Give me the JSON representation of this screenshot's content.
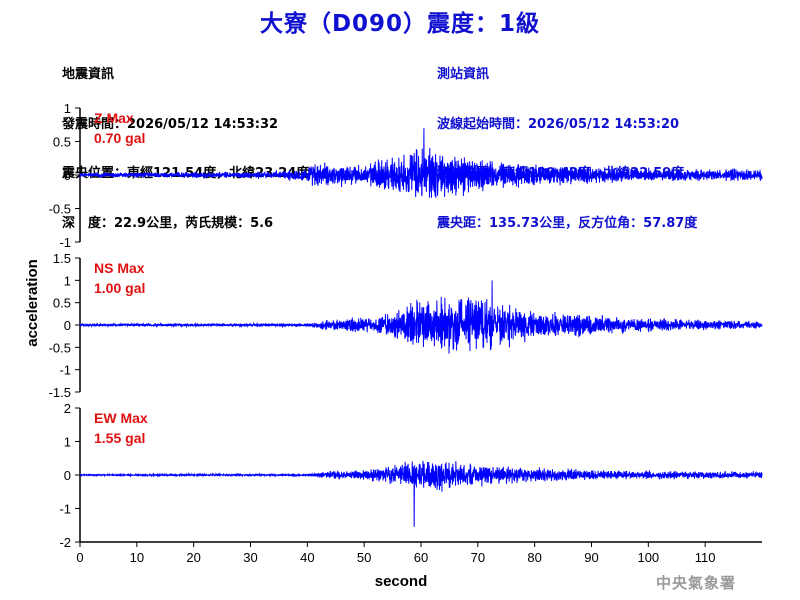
{
  "title": "大寮（D090）震度：1級",
  "info_left": {
    "heading": "地震資訊",
    "origin_time": "發震時間：2026/05/12 14:53:32",
    "epicenter": "震央位置：東經121.54度，北緯23.24度",
    "depth_magnitude": "深　度：22.9公里，芮氏規模：5.6"
  },
  "info_right": {
    "heading": "測站資訊",
    "wave_start": "波線起始時間：2026/05/12 14:53:20",
    "station_location": "測站位置：東經120.42度，北緯22.59度",
    "distance_azimuth": "震央距：135.73公里，反方位角：57.87度"
  },
  "watermark": "中央氣象署",
  "colors": {
    "title": "#1010d0",
    "trace": "#0000ff",
    "max_label": "#e01010",
    "info_right": "#1010d0"
  },
  "chart_data": {
    "type": "line",
    "xlabel": "second",
    "ylabel": "acceleration",
    "xlim": [
      0,
      120
    ],
    "xticks": [
      0,
      10,
      20,
      30,
      40,
      50,
      60,
      70,
      80,
      90,
      100,
      110
    ],
    "panels": [
      {
        "component": "Z",
        "max_label": "Z Max",
        "max_value": "0.70 gal",
        "ylim": [
          -1,
          1
        ],
        "yticks": [
          1,
          0.5,
          0,
          -0.5,
          -1
        ],
        "ytick_labels": [
          "1",
          "0.5",
          "0",
          "-0.5",
          "-1"
        ],
        "envelope": {
          "t": [
            0,
            30,
            38,
            42,
            50,
            55,
            58,
            60,
            62,
            65,
            68,
            72,
            80,
            90,
            100,
            110,
            120
          ],
          "amp": [
            0.05,
            0.06,
            0.12,
            0.25,
            0.22,
            0.4,
            0.45,
            0.62,
            0.55,
            0.45,
            0.38,
            0.3,
            0.22,
            0.17,
            0.14,
            0.12,
            0.12
          ]
        },
        "peak": {
          "t": 60.5,
          "value": 0.7
        }
      },
      {
        "component": "NS",
        "max_label": "NS Max",
        "max_value": "1.00 gal",
        "ylim": [
          -1.5,
          1.5
        ],
        "yticks": [
          1.5,
          1,
          0.5,
          0,
          -0.5,
          -1,
          -1.5
        ],
        "ytick_labels": [
          "1.5",
          "1",
          "0.5",
          "0",
          "-0.5",
          "-1",
          "-1.5"
        ],
        "envelope": {
          "t": [
            0,
            40,
            44,
            50,
            55,
            58,
            62,
            66,
            70,
            73,
            76,
            80,
            90,
            100,
            110,
            120
          ],
          "amp": [
            0.04,
            0.05,
            0.18,
            0.22,
            0.4,
            0.65,
            0.75,
            0.8,
            0.85,
            0.8,
            0.55,
            0.4,
            0.3,
            0.2,
            0.15,
            0.12
          ]
        },
        "peak": {
          "t": 72.5,
          "value": 1.0
        }
      },
      {
        "component": "EW",
        "max_label": "EW Max",
        "max_value": "1.55 gal",
        "ylim": [
          -2,
          2
        ],
        "yticks": [
          2,
          1,
          0,
          -1,
          -2
        ],
        "ytick_labels": [
          "2",
          "1",
          "0",
          "-1",
          "-2"
        ],
        "envelope": {
          "t": [
            0,
            40,
            44,
            50,
            55,
            58,
            60,
            62,
            65,
            68,
            72,
            80,
            90,
            100,
            110,
            120
          ],
          "amp": [
            0.03,
            0.04,
            0.15,
            0.2,
            0.35,
            0.55,
            0.6,
            0.65,
            0.6,
            0.5,
            0.4,
            0.3,
            0.2,
            0.17,
            0.15,
            0.15
          ]
        },
        "peak": {
          "t": 58.8,
          "value": -1.55
        }
      }
    ]
  }
}
